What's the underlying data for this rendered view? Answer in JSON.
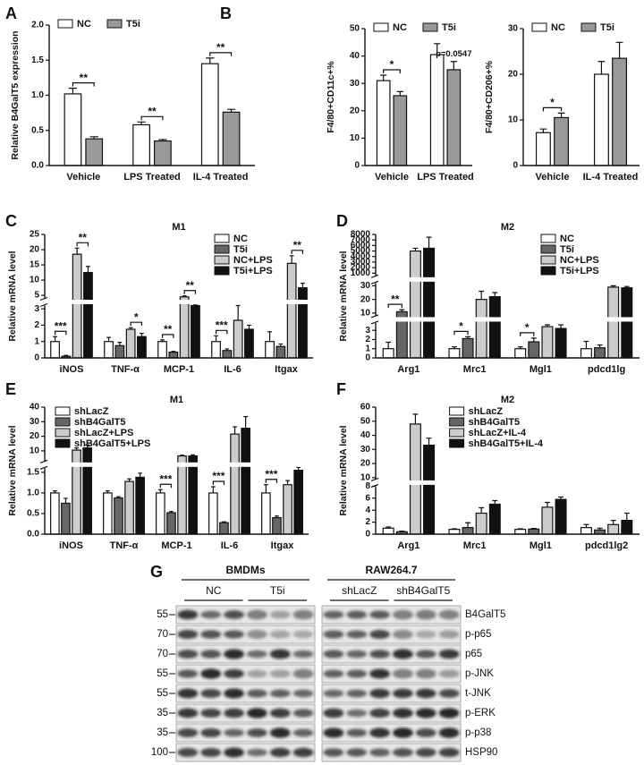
{
  "panels": [
    "A",
    "B",
    "C",
    "D",
    "E",
    "F",
    "G"
  ],
  "chart_data": [
    {
      "type": "bar",
      "ylabel": "Relative B4GalT5 expression",
      "categories": [
        "Vehicle",
        "LPS Treated",
        "IL-4 Treated"
      ],
      "series": [
        {
          "name": "NC",
          "color": "#ffffff",
          "values": [
            1.02,
            0.58,
            1.45
          ],
          "errors": [
            0.08,
            0.04,
            0.08
          ]
        },
        {
          "name": "T5i",
          "color": "#999999",
          "values": [
            0.38,
            0.35,
            0.76
          ],
          "errors": [
            0.03,
            0.02,
            0.04
          ]
        }
      ],
      "ylim": [
        0,
        2
      ],
      "yticks": [
        {
          "value": 0,
          "label": "0.0"
        },
        {
          "value": 0.5,
          "label": "0.5"
        },
        {
          "value": 1,
          "label": "1.0"
        },
        {
          "value": 1.5,
          "label": "1.5"
        },
        {
          "value": 2,
          "label": "2.0"
        }
      ],
      "legend": "upper left",
      "annotations": [
        "**",
        "**",
        "**"
      ]
    },
    {
      "type": "bar",
      "ylabel": "F4/80+CD11c+%",
      "categories": [
        "Vehicle",
        "LPS Treated"
      ],
      "series": [
        {
          "name": "NC",
          "color": "#ffffff",
          "values": [
            31,
            40.5
          ],
          "errors": [
            2,
            4
          ]
        },
        {
          "name": "T5i",
          "color": "#999999",
          "values": [
            25.5,
            35
          ],
          "errors": [
            1.5,
            3
          ]
        }
      ],
      "ylim": [
        0,
        50
      ],
      "yticks": [
        0,
        10,
        20,
        30,
        40,
        50
      ],
      "legend": "upper left",
      "annotations": [
        "*",
        "p=0.0547"
      ]
    },
    {
      "type": "bar",
      "ylabel": "F4/80+CD206+%",
      "categories": [
        "Vehicle",
        "IL-4 Treated"
      ],
      "series": [
        {
          "name": "NC",
          "color": "#ffffff",
          "values": [
            7.2,
            20
          ],
          "errors": [
            0.8,
            2.8
          ]
        },
        {
          "name": "T5i",
          "color": "#999999",
          "values": [
            10.5,
            23.5
          ],
          "errors": [
            1,
            3.5
          ]
        }
      ],
      "ylim": [
        0,
        30
      ],
      "yticks": [
        0,
        10,
        20,
        30
      ],
      "legend": "upper left",
      "annotations": [
        "*"
      ]
    },
    {
      "type": "bar",
      "title": "M1",
      "ylabel": "Relative mRNA level",
      "categories": [
        "iNOS",
        "TNF-α",
        "MCP-1",
        "IL-6",
        "Itgax"
      ],
      "series": [
        {
          "name": "NC",
          "color": "#ffffff",
          "values": [
            1,
            1,
            1,
            1,
            1
          ],
          "errors": [
            0.3,
            0.25,
            0.1,
            0.35,
            0.6
          ]
        },
        {
          "name": "T5i",
          "color": "#666666",
          "values": [
            0.1,
            0.75,
            0.35,
            0.45,
            0.7
          ],
          "errors": [
            0.05,
            0.2,
            0.05,
            0.1,
            0.15
          ]
        },
        {
          "name": "NC+LPS",
          "color": "#cccccc",
          "values": [
            18.5,
            1.75,
            4.5,
            2.3,
            15.5
          ],
          "errors": [
            2,
            0.1,
            0.3,
            0.9,
            2.5
          ]
        },
        {
          "name": "T5i+LPS",
          "color": "#111111",
          "values": [
            12.5,
            1.3,
            3.2,
            1.75,
            7.5
          ],
          "errors": [
            2,
            0.2,
            0.15,
            0.25,
            1.5
          ]
        }
      ],
      "y_segments": [
        {
          "ylim": [
            0,
            3.2
          ],
          "yticks": [
            0,
            1,
            2,
            3
          ]
        },
        {
          "ylim": [
            4,
            25
          ],
          "yticks": [
            5,
            10,
            15,
            20,
            25
          ]
        }
      ],
      "legend": "upper right",
      "annotations": [
        "***",
        "**",
        "*",
        "**",
        "**",
        "***",
        "**"
      ]
    },
    {
      "type": "bar",
      "title": "M2",
      "ylabel": "Relative mRNA level",
      "categories": [
        "Arg1",
        "Mrc1",
        "Mgl1",
        "pdcd1lg"
      ],
      "series": [
        {
          "name": "NC",
          "color": "#ffffff",
          "values": [
            1,
            1,
            1,
            1
          ],
          "errors": [
            0.7,
            0.2,
            0.2,
            0.8
          ]
        },
        {
          "name": "T5i",
          "color": "#666666",
          "values": [
            11,
            2.1,
            1.75,
            1.1
          ],
          "errors": [
            1.5,
            0.2,
            0.4,
            0.3
          ]
        },
        {
          "name": "NC+LPS",
          "color": "#cccccc",
          "values": [
            5000,
            20,
            3.4,
            29
          ],
          "errors": [
            500,
            6,
            0.2,
            1
          ]
        },
        {
          "name": "T5i+LPS",
          "color": "#111111",
          "values": [
            5500,
            22,
            3.2,
            28.5
          ],
          "errors": [
            2000,
            3,
            0.4,
            1
          ]
        }
      ],
      "y_segments": [
        {
          "ylim": [
            0,
            3.8
          ],
          "yticks": [
            0,
            1,
            2,
            3
          ]
        },
        {
          "ylim": [
            8,
            32
          ],
          "yticks": [
            10,
            20,
            30
          ]
        },
        {
          "ylim": [
            500,
            8000
          ],
          "yticks": [
            1000,
            2000,
            3000,
            4000,
            5000,
            6000,
            7000,
            8000
          ]
        }
      ],
      "legend": "upper right",
      "annotations": [
        "**",
        "*",
        "*"
      ]
    },
    {
      "type": "bar",
      "title": "M1",
      "ylabel": "Relative mRNA level",
      "categories": [
        "iNOS",
        "TNF-α",
        "MCP-1",
        "IL-6",
        "Itgax"
      ],
      "series": [
        {
          "name": "shLacZ",
          "color": "#ffffff",
          "values": [
            1,
            1,
            1,
            1,
            1
          ],
          "errors": [
            0.05,
            0.05,
            0.08,
            0.15,
            0.2
          ]
        },
        {
          "name": "shB4GalT5",
          "color": "#666666",
          "values": [
            0.75,
            0.88,
            0.52,
            0.28,
            0.4
          ],
          "errors": [
            0.12,
            0.03,
            0.03,
            0.02,
            0.04
          ]
        },
        {
          "name": "shLacZ+LPS",
          "color": "#cccccc",
          "values": [
            10.5,
            1.28,
            6.5,
            21.5,
            1.2
          ],
          "errors": [
            1.5,
            0.06,
            0.5,
            5,
            0.1
          ]
        },
        {
          "name": "shB4GalT5+LPS",
          "color": "#111111",
          "values": [
            12,
            1.38,
            6.5,
            25.5,
            1.55
          ],
          "errors": [
            2,
            0.1,
            0.8,
            8,
            0.2
          ]
        }
      ],
      "y_segments": [
        {
          "ylim": [
            0,
            1.6
          ],
          "yticks": [
            {
              "value": 0,
              "label": "0.0"
            },
            {
              "value": 0.5,
              "label": "0.5"
            },
            {
              "value": 1,
              "label": "1.0"
            },
            {
              "value": 1.5,
              "label": "1.5"
            }
          ]
        },
        {
          "ylim": [
            3,
            40
          ],
          "yticks": [
            10,
            20,
            30,
            40
          ]
        }
      ],
      "legend": "upper left",
      "annotations": [
        "***",
        "***",
        "***"
      ]
    },
    {
      "type": "bar",
      "title": "M2",
      "ylabel": "Relative mRNA level",
      "categories": [
        "Arg1",
        "Mrc1",
        "Mgl1",
        "pdcd1lg2"
      ],
      "series": [
        {
          "name": "shLacZ",
          "color": "#ffffff",
          "values": [
            1,
            0.8,
            0.8,
            1.1
          ],
          "errors": [
            0.2,
            0.1,
            0.1,
            0.5
          ]
        },
        {
          "name": "shB4GalT5",
          "color": "#666666",
          "values": [
            0.4,
            1.1,
            0.85,
            0.7
          ],
          "errors": [
            0.1,
            0.8,
            0.1,
            0.3
          ]
        },
        {
          "name": "shLacZ+IL-4",
          "color": "#cccccc",
          "values": [
            48,
            3.5,
            4.5,
            1.6
          ],
          "errors": [
            7,
            0.9,
            0.8,
            0.7
          ]
        },
        {
          "name": "shB4GalT5+IL-4",
          "color": "#111111",
          "values": [
            33,
            5,
            5.8,
            2.3
          ],
          "errors": [
            5,
            0.6,
            0.4,
            1.2
          ]
        }
      ],
      "y_segments": [
        {
          "ylim": [
            0,
            8
          ],
          "yticks": [
            0,
            2,
            4,
            6,
            8
          ]
        },
        {
          "ylim": [
            9,
            60
          ],
          "yticks": [
            10,
            20,
            30,
            40,
            50,
            60
          ]
        }
      ],
      "legend": "upper center",
      "annotations": []
    }
  ],
  "blot": {
    "groups": [
      {
        "label": "BMDMs",
        "subgroups": [
          "NC",
          "T5i"
        ]
      },
      {
        "label": "RAW264.7",
        "subgroups": [
          "shLacZ",
          "shB4GalT5"
        ]
      }
    ],
    "markers": [
      "55",
      "70",
      "70",
      "55",
      "55",
      "35",
      "35",
      "100"
    ],
    "proteins": [
      "B4GalT5",
      "p-p65",
      "p65",
      "p-JNK",
      "t-JNK",
      "p-ERK",
      "p-p38",
      "HSP90"
    ]
  }
}
